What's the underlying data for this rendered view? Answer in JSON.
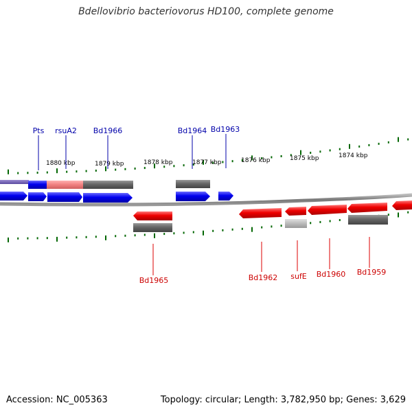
{
  "title": "Bdellovibrio bacteriovorus HD100, complete genome",
  "footer": {
    "accession": "Accession: NC_005363",
    "topology": "Topology: circular; Length: 3,782,950 bp; Genes: 3,629"
  },
  "colors": {
    "forward_gene": "#0000ee",
    "reverse_gene": "#ee0000",
    "backbone": "#888888",
    "tick": "#006600",
    "rna": "#f08080",
    "feature_gray": "#666666"
  },
  "tick_labels": [
    "1880 kbp",
    "1879 kbp",
    "1878 kbp",
    "1877 kbp",
    "1876 kbp",
    "1875 kbp",
    "1874 kbp"
  ],
  "gene_labels": {
    "pts": "Pts",
    "rsua2": "rsuA2",
    "bd1966": "Bd1966",
    "bd1964": "Bd1964",
    "bd1963": "Bd1963",
    "bd1965": "Bd1965",
    "bd1962": "Bd1962",
    "sufe": "sufE",
    "bd1960": "Bd1960",
    "bd1959": "Bd1959"
  }
}
